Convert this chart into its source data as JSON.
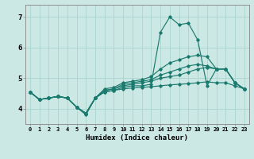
{
  "xlabel": "Humidex (Indice chaleur)",
  "xlim": [
    -0.5,
    23.5
  ],
  "ylim": [
    3.5,
    7.4
  ],
  "yticks": [
    4,
    5,
    6,
    7
  ],
  "xticks": [
    0,
    1,
    2,
    3,
    4,
    5,
    6,
    7,
    8,
    9,
    10,
    11,
    12,
    13,
    14,
    15,
    16,
    17,
    18,
    19,
    20,
    21,
    22,
    23
  ],
  "bg_color": "#cce8e4",
  "grid_color": "#aad4ce",
  "line_color": "#1a7a6e",
  "lines": [
    {
      "x": [
        0,
        1,
        2,
        3,
        4,
        5,
        6,
        7,
        8,
        9,
        10,
        11,
        12,
        13,
        14,
        15,
        16,
        17,
        18,
        19,
        20,
        21,
        22,
        23
      ],
      "y": [
        4.55,
        4.3,
        4.35,
        4.4,
        4.35,
        4.05,
        3.8,
        4.35,
        4.55,
        4.6,
        4.7,
        4.75,
        4.75,
        4.8,
        6.5,
        7.0,
        6.75,
        6.8,
        6.25,
        4.75,
        5.3,
        5.3,
        4.85,
        4.65
      ]
    },
    {
      "x": [
        0,
        1,
        2,
        3,
        4,
        5,
        6,
        7,
        8,
        9,
        10,
        11,
        12,
        13,
        14,
        15,
        16,
        17,
        18,
        19,
        20,
        21,
        22,
        23
      ],
      "y": [
        4.55,
        4.3,
        4.35,
        4.4,
        4.35,
        4.05,
        3.85,
        4.35,
        4.65,
        4.7,
        4.85,
        4.9,
        4.95,
        5.05,
        5.3,
        5.5,
        5.6,
        5.7,
        5.75,
        5.7,
        5.3,
        5.3,
        4.85,
        4.65
      ]
    },
    {
      "x": [
        0,
        1,
        2,
        3,
        4,
        5,
        6,
        7,
        8,
        9,
        10,
        11,
        12,
        13,
        14,
        15,
        16,
        17,
        18,
        19,
        20,
        21,
        22,
        23
      ],
      "y": [
        4.55,
        4.3,
        4.35,
        4.4,
        4.35,
        4.05,
        3.85,
        4.35,
        4.6,
        4.65,
        4.8,
        4.85,
        4.9,
        4.95,
        5.1,
        5.2,
        5.3,
        5.4,
        5.45,
        5.4,
        5.3,
        5.3,
        4.85,
        4.65
      ]
    },
    {
      "x": [
        0,
        1,
        2,
        3,
        4,
        5,
        6,
        7,
        8,
        9,
        10,
        11,
        12,
        13,
        14,
        15,
        16,
        17,
        18,
        19,
        20,
        21,
        22,
        23
      ],
      "y": [
        4.55,
        4.3,
        4.35,
        4.4,
        4.35,
        4.05,
        3.85,
        4.35,
        4.6,
        4.65,
        4.75,
        4.8,
        4.85,
        4.9,
        5.0,
        5.05,
        5.1,
        5.2,
        5.3,
        5.35,
        5.3,
        5.3,
        4.85,
        4.65
      ]
    },
    {
      "x": [
        0,
        1,
        2,
        3,
        4,
        5,
        6,
        7,
        8,
        9,
        10,
        11,
        12,
        13,
        14,
        15,
        16,
        17,
        18,
        19,
        20,
        21,
        22,
        23
      ],
      "y": [
        4.55,
        4.3,
        4.35,
        4.4,
        4.35,
        4.05,
        3.85,
        4.35,
        4.55,
        4.6,
        4.65,
        4.68,
        4.7,
        4.72,
        4.75,
        4.78,
        4.8,
        4.82,
        4.85,
        4.88,
        4.85,
        4.85,
        4.75,
        4.65
      ]
    }
  ]
}
